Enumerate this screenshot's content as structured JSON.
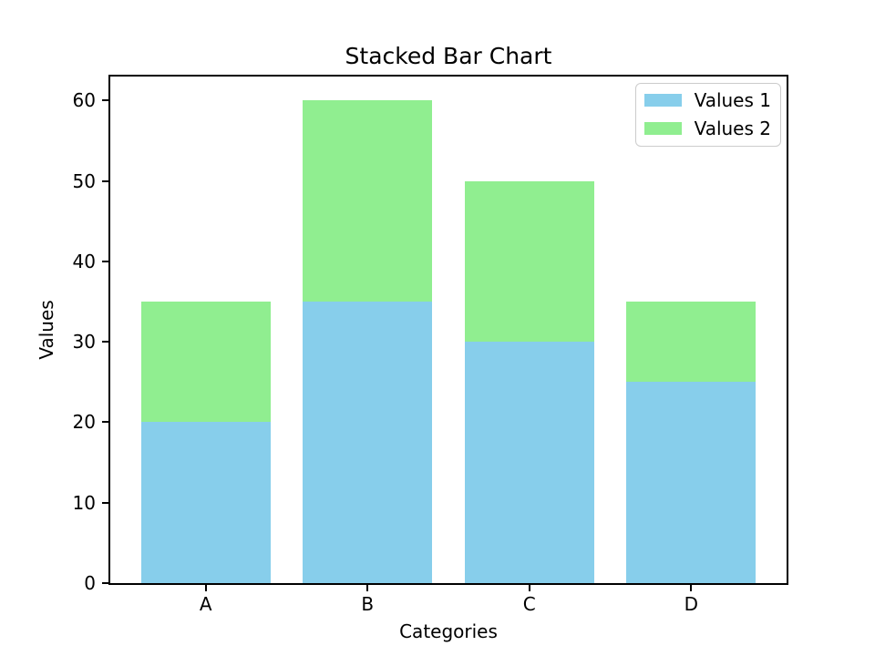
{
  "chart_data": {
    "type": "bar",
    "stacked": true,
    "title": "Stacked Bar Chart",
    "xlabel": "Categories",
    "ylabel": "Values",
    "categories": [
      "A",
      "B",
      "C",
      "D"
    ],
    "series": [
      {
        "name": "Values 1",
        "color": "#87CEEB",
        "values": [
          20,
          35,
          30,
          25
        ]
      },
      {
        "name": "Values 2",
        "color": "#90EE90",
        "values": [
          15,
          25,
          20,
          10
        ]
      }
    ],
    "totals": [
      35,
      60,
      50,
      35
    ],
    "yticks": [
      0,
      10,
      20,
      30,
      40,
      50,
      60
    ],
    "ylim": [
      0,
      63
    ],
    "grid": false,
    "legend_position": "upper-right",
    "colors": {
      "series1": "#87CEEB",
      "series2": "#90EE90",
      "spine": "#000000",
      "legend_border": "#cccccc",
      "background": "#ffffff"
    }
  }
}
